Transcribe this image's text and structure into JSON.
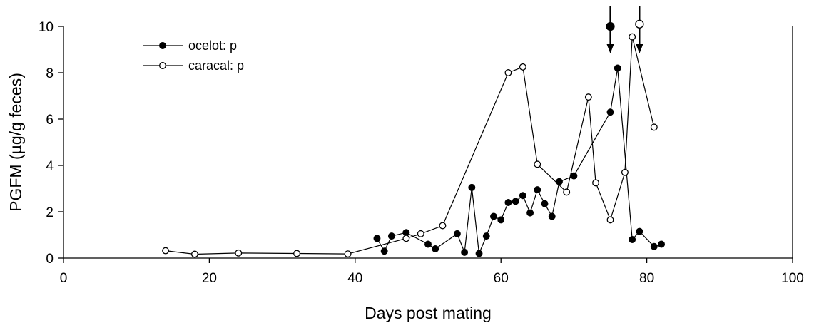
{
  "chart_data": {
    "type": "line",
    "xlabel": "Days post mating",
    "ylabel": "PGFM (µg/g feces)",
    "xlim": [
      0,
      100
    ],
    "ylim": [
      0,
      10
    ],
    "xticks": [
      0,
      20,
      40,
      60,
      80,
      100
    ],
    "yticks": [
      0,
      2,
      4,
      6,
      8,
      10
    ],
    "grid": false,
    "legend_position": "top-left",
    "series": [
      {
        "name": "ocelot: p",
        "marker": "filled-circle",
        "color": "#000000",
        "x": [
          43,
          44,
          45,
          47,
          50,
          51,
          54,
          55,
          56,
          57,
          58,
          59,
          60,
          61,
          62,
          63,
          64,
          65,
          66,
          67,
          68,
          70,
          75,
          76,
          78,
          79,
          81,
          82
        ],
        "y": [
          0.85,
          0.3,
          0.95,
          1.1,
          0.6,
          0.4,
          1.05,
          0.25,
          3.05,
          0.2,
          0.95,
          1.8,
          1.65,
          2.4,
          2.45,
          2.7,
          1.95,
          2.95,
          2.35,
          1.8,
          3.3,
          3.55,
          6.3,
          8.2,
          0.8,
          1.15,
          0.5,
          0.6
        ]
      },
      {
        "name": "caracal: p",
        "marker": "open-circle",
        "color": "#000000",
        "x": [
          14,
          18,
          24,
          32,
          39,
          47,
          49,
          52,
          61,
          63,
          65,
          69,
          72,
          73,
          75,
          77,
          78,
          81
        ],
        "y": [
          0.32,
          0.17,
          0.22,
          0.2,
          0.18,
          0.85,
          1.05,
          1.4,
          8.0,
          8.25,
          4.05,
          2.85,
          6.95,
          3.25,
          1.65,
          3.7,
          9.55,
          5.65
        ]
      }
    ],
    "annotations": [
      {
        "type": "arrow",
        "x": 75,
        "marker": "filled-circle",
        "marker_y": 10
      },
      {
        "type": "arrow",
        "x": 79,
        "marker": "open-circle",
        "marker_y": 10.1
      }
    ]
  }
}
